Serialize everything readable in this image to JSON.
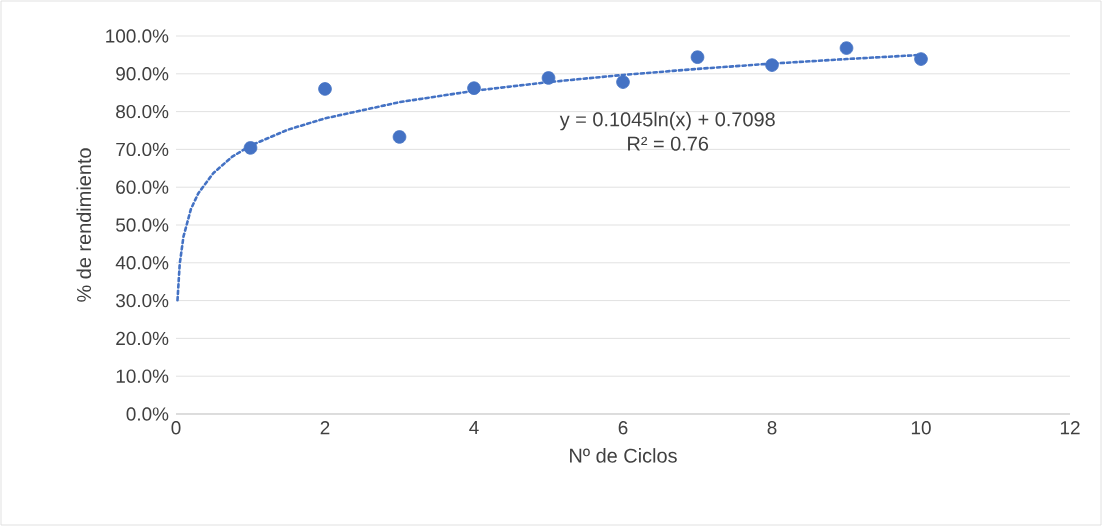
{
  "chart_data": {
    "type": "scatter",
    "xlabel": "Nº de Ciclos",
    "ylabel": "% de rendimiento",
    "x": [
      1,
      2,
      3,
      4,
      5,
      6,
      7,
      8,
      9,
      10
    ],
    "series": [
      {
        "color": "#4472c4",
        "marker": "circle",
        "values": [
          0.704,
          0.86,
          0.733,
          0.862,
          0.889,
          0.878,
          0.944,
          0.923,
          0.968,
          0.939
        ]
      },
      {
        "type": "line",
        "color": "#4472c4",
        "marker": "none",
        "line_style": "dotted",
        "x": [
          0.02,
          0.05,
          0.1,
          0.2,
          0.3,
          0.5,
          0.75,
          1,
          1.5,
          2,
          3,
          4,
          5,
          6,
          7,
          8,
          9,
          10
        ],
        "values": [
          0.301,
          0.397,
          0.469,
          0.542,
          0.584,
          0.637,
          0.68,
          0.71,
          0.752,
          0.782,
          0.825,
          0.855,
          0.878,
          0.897,
          0.913,
          0.927,
          0.939,
          0.95
        ]
      }
    ],
    "annotations": [
      "y = 0.1045ln(x) + 0.7098",
      "R² = 0.76"
    ],
    "xlim": [
      0,
      12
    ],
    "xticks": [
      0,
      2,
      4,
      6,
      8,
      10,
      12
    ],
    "ylim": [
      0,
      1
    ],
    "yticks": [
      {
        "value": 0,
        "label": "0.0%"
      },
      {
        "value": 0.1,
        "label": "10.0%"
      },
      {
        "value": 0.2,
        "label": "20.0%"
      },
      {
        "value": 0.3,
        "label": "30.0%"
      },
      {
        "value": 0.4,
        "label": "40.0%"
      },
      {
        "value": 0.5,
        "label": "50.0%"
      },
      {
        "value": 0.6,
        "label": "60.0%"
      },
      {
        "value": 0.7,
        "label": "70.0%"
      },
      {
        "value": 0.8,
        "label": "80.0%"
      },
      {
        "value": 0.9,
        "label": "90.0%"
      },
      {
        "value": 1,
        "label": "100.0%"
      }
    ],
    "grid": "y"
  }
}
